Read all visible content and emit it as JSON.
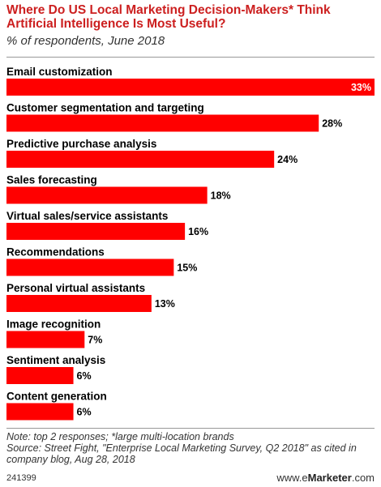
{
  "title": "Where Do US Local Marketing Decision-Makers* Think Artificial Intelligence Is Most Useful?",
  "subtitle": "% of respondents, June 2018",
  "chart_data": {
    "type": "bar",
    "orientation": "horizontal",
    "categories": [
      "Email customization",
      "Customer segmentation and targeting",
      "Predictive purchase analysis",
      "Sales forecasting",
      "Virtual sales/service assistants",
      "Recommendations",
      "Personal virtual assistants",
      "Image recognition",
      "Sentiment analysis",
      "Content generation"
    ],
    "values": [
      33,
      28,
      24,
      18,
      16,
      15,
      13,
      7,
      6,
      6
    ],
    "value_labels": [
      "33%",
      "28%",
      "24%",
      "18%",
      "16%",
      "15%",
      "13%",
      "7%",
      "6%",
      "6%"
    ],
    "xlim": [
      0,
      33
    ],
    "bar_color": "#ff0000",
    "grid": false
  },
  "notes": {
    "line1": "Note: top 2 responses; *large multi-location brands",
    "line2": "Source: Street Fight, \"Enterprise Local Marketing Survey, Q2 2018\" as cited in company blog, Aug 28, 2018"
  },
  "footer": {
    "id": "241399",
    "brand_prefix": "www.",
    "brand_e": "e",
    "brand_name": "Marketer",
    "brand_suffix": ".com"
  }
}
